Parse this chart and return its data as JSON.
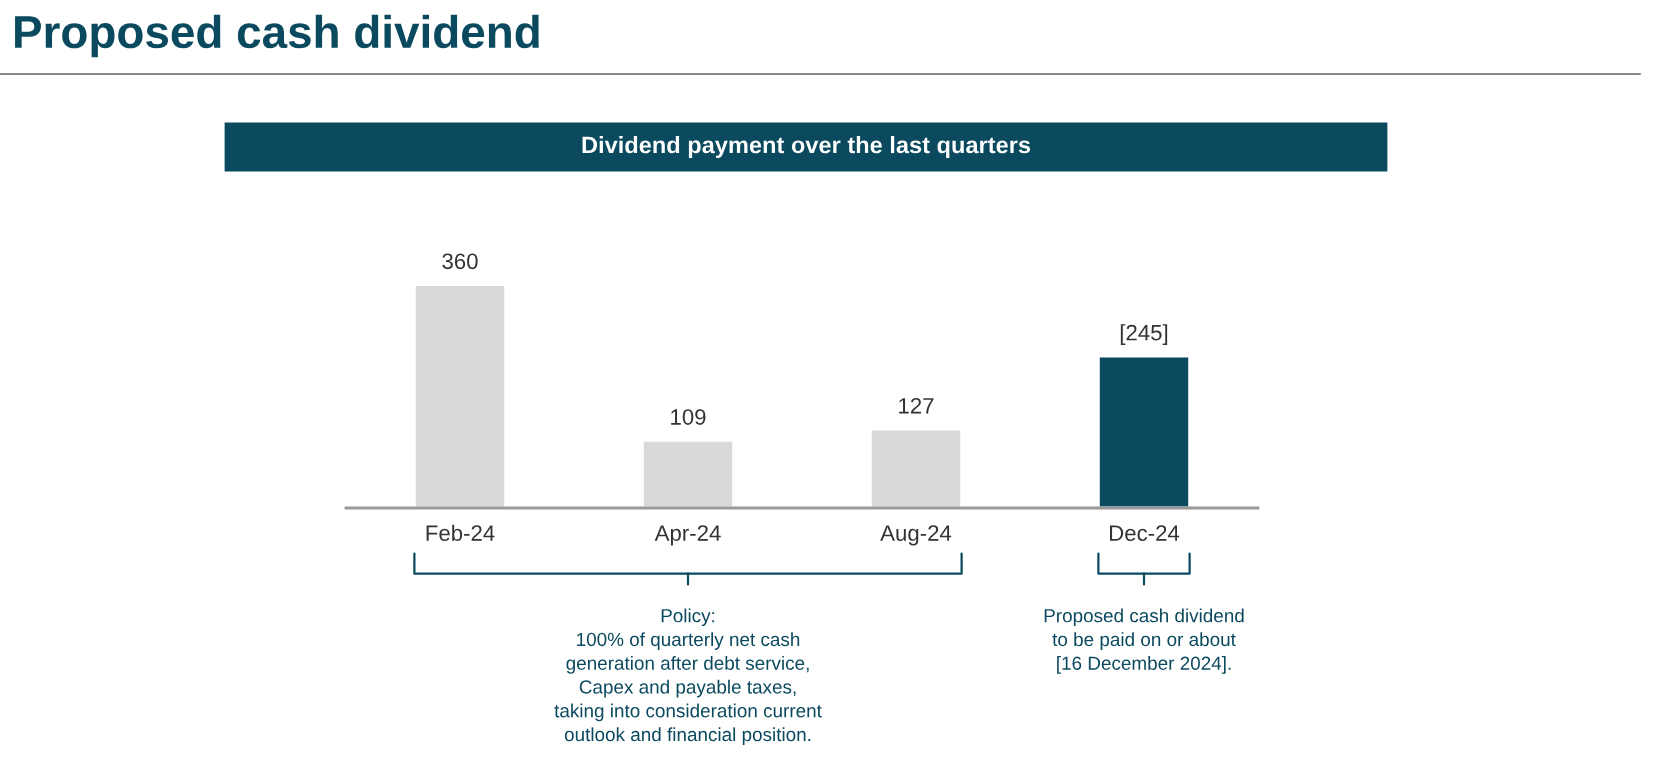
{
  "chart_data": {
    "type": "bar",
    "title": "Proposed cash dividend",
    "subtitle": "Dividend payment over the last quarters",
    "categories": [
      "Feb-24",
      "Apr-24",
      "Aug-24",
      "Dec-24"
    ],
    "values": [
      360,
      109,
      127,
      245
    ],
    "colors": [
      "#d9d9d9",
      "#d9d9d9",
      "#d9d9d9",
      "#0b4a5e"
    ],
    "value_labels": [
      "360",
      "109",
      "127",
      "[245]"
    ],
    "annotations": [
      "Policy:\n100% of quarterly net cash\ngeneration after debt service,\nCapex and payable taxes,\ntaking into consideration current\noutlook and financial position.",
      "Proposed cash dividend\nto be paid on or about\n[16 December 2024]."
    ]
  }
}
